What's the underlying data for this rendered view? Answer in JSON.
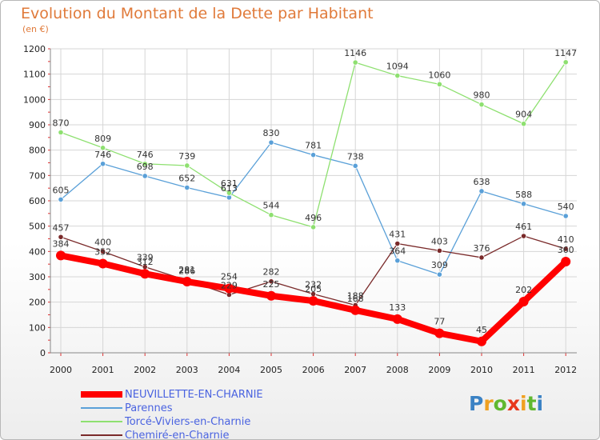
{
  "chart_data": {
    "type": "line",
    "title": "Evolution du Montant de la Dette par Habitant",
    "subtitle": "(en €)",
    "x": [
      "2000",
      "2001",
      "2002",
      "2003",
      "2004",
      "2005",
      "2006",
      "2007",
      "2008",
      "2009",
      "2010",
      "2011",
      "2012"
    ],
    "yticks": [
      "0",
      "100",
      "200",
      "300",
      "400",
      "500",
      "600",
      "700",
      "800",
      "900",
      "1000",
      "1100",
      "1200"
    ],
    "ylim": [
      0,
      1200
    ],
    "grid": true,
    "legend_position": "bottom-left",
    "series": [
      {
        "name": "NEUVILLETTE-EN-CHARNIE",
        "color": "#ff0000",
        "values": [
          384,
          352,
          312,
          281,
          254,
          225,
          205,
          168,
          133,
          77,
          45,
          202,
          360
        ]
      },
      {
        "name": "Parennes",
        "color": "#5aa0d8",
        "values": [
          605,
          746,
          698,
          652,
          613,
          830,
          781,
          738,
          364,
          309,
          638,
          588,
          540
        ]
      },
      {
        "name": "Torcé-Viviers-en-Charnie",
        "color": "#8ee070",
        "values": [
          870,
          809,
          746,
          739,
          631,
          544,
          496,
          1146,
          1094,
          1060,
          980,
          904,
          1147
        ]
      },
      {
        "name": "Chemiré-en-Charnie",
        "color": "#7a2a2a",
        "values": [
          457,
          400,
          339,
          286,
          229,
          282,
          232,
          188,
          431,
          403,
          376,
          461,
          410
        ]
      }
    ]
  },
  "logo": {
    "letters": [
      "P",
      "r",
      "o",
      "x",
      "i",
      "t",
      "i"
    ],
    "colors": [
      "#3b82c4",
      "#f0a020",
      "#60b830",
      "#e8381c",
      "#f0a020",
      "#60b830",
      "#3b82c4"
    ]
  }
}
